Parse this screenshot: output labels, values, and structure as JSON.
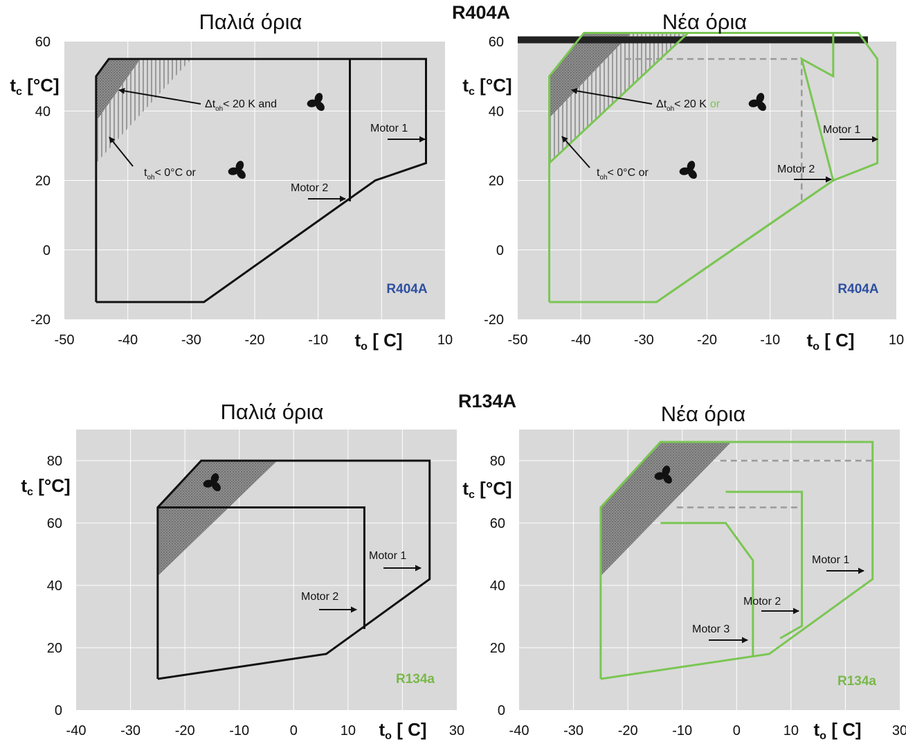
{
  "section_titles": {
    "top": "R404A",
    "bottom": "R134A"
  },
  "colors": {
    "old_envelope": "#111111",
    "new_envelope": "#7ac653",
    "plot_bg": "#d9d9d9",
    "grid": "#ffffff",
    "ref_r404a": "#2e4fa1",
    "ref_r134a": "#79b84a"
  },
  "chart_data": [
    {
      "type": "line",
      "title": "Παλιά όρια",
      "xlabel": "t_o [ C]",
      "ylabel": "t_c [°C]",
      "xlim": [
        -50,
        10
      ],
      "ylim": [
        -20,
        60
      ],
      "xticks": [
        -50,
        -40,
        -30,
        -20,
        -10,
        10
      ],
      "yticks": [
        -20,
        0,
        20,
        40,
        60
      ],
      "reference_label": "R404A",
      "envelope_color": "#111111",
      "series": [
        {
          "name": "Motor 1",
          "x": [
            -45,
            -45,
            -43,
            7,
            7,
            -1,
            -28,
            -45
          ],
          "y": [
            -15,
            50,
            55,
            55,
            25,
            20,
            -15,
            -15
          ]
        },
        {
          "name": "Motor 2",
          "x": [
            -5,
            -5
          ],
          "y": [
            55,
            14
          ]
        }
      ],
      "zones": [
        {
          "kind": "dotted",
          "x": [
            -45,
            -45,
            -43,
            -38,
            -45
          ],
          "y": [
            37,
            50,
            55,
            55,
            37
          ]
        },
        {
          "kind": "hatched",
          "x": [
            -45,
            -45,
            -38,
            -30
          ],
          "y": [
            25,
            37,
            55,
            55
          ]
        }
      ],
      "annotations": [
        {
          "text": "Δt_oh< 20 K and",
          "fan": true
        },
        {
          "text": "t_oh< 0°C or",
          "fan": true
        },
        {
          "text": "Motor 1"
        },
        {
          "text": "Motor 2"
        }
      ]
    },
    {
      "type": "line",
      "title": "Νέα όρια",
      "xlabel": "t_o [ C]",
      "ylabel": "t_c [°C]",
      "xlim": [
        -50,
        10
      ],
      "ylim": [
        -20,
        60
      ],
      "xticks": [
        -50,
        -40,
        -30,
        -20,
        -10,
        10
      ],
      "yticks": [
        -20,
        0,
        20,
        40,
        60
      ],
      "reference_label": "R404A",
      "envelope_color": "#7ac653",
      "series": [
        {
          "name": "Motor 1",
          "x": [
            -45,
            -45,
            -39.5,
            4,
            7,
            7,
            0,
            -28,
            -45
          ],
          "y": [
            -15,
            50,
            62.5,
            62.5,
            55,
            25,
            20,
            -15,
            -15
          ]
        },
        {
          "name": "Motor 2",
          "x": [
            -45,
            -23,
            0,
            0,
            -5,
            -5,
            0,
            -28,
            -45
          ],
          "y": [
            25,
            62.5,
            62.5,
            50,
            55,
            55,
            20,
            -15,
            -15
          ]
        }
      ],
      "old_limit_dashed": {
        "x": [
          -33,
          -5,
          -5
        ],
        "y": [
          55,
          55,
          14
        ]
      },
      "old_limit_bar": {
        "x": [
          -50,
          5.5
        ],
        "y": 60.5
      },
      "zones": [
        {
          "kind": "dotted",
          "x": [
            -45,
            -45,
            -39.5,
            -32,
            -45
          ],
          "y": [
            38,
            50,
            62.5,
            62.5,
            38
          ]
        },
        {
          "kind": "hatched",
          "x": [
            -45,
            -45,
            -32,
            -23
          ],
          "y": [
            25,
            38,
            62.5,
            62.5
          ]
        }
      ],
      "annotations": [
        {
          "text": "Δt_oh< 20 K",
          "suffix": "or",
          "fan": true
        },
        {
          "text": "t_oh< 0°C or",
          "fan": true
        },
        {
          "text": "Motor 1"
        },
        {
          "text": "Motor 2"
        }
      ]
    },
    {
      "type": "line",
      "title": "Παλιά όρια",
      "xlabel": "t_o [ C]",
      "ylabel": "t_c [°C]",
      "xlim": [
        -40,
        30
      ],
      "ylim": [
        0,
        90
      ],
      "xticks": [
        -40,
        -30,
        -20,
        -10,
        0,
        10,
        30
      ],
      "yticks": [
        0,
        20,
        40,
        60,
        80
      ],
      "reference_label": "R134a",
      "envelope_color": "#111111",
      "series": [
        {
          "name": "Motor 1",
          "x": [
            -25,
            -25,
            -17,
            25,
            25,
            6,
            -25
          ],
          "y": [
            10,
            65,
            80,
            80,
            42,
            18,
            10
          ]
        },
        {
          "name": "Motor 2",
          "x": [
            -25,
            13,
            13
          ],
          "y": [
            65,
            65,
            26
          ]
        }
      ],
      "zones": [
        {
          "kind": "dotted",
          "x": [
            -25,
            -25,
            -17,
            -3,
            -25
          ],
          "y": [
            43,
            65,
            80,
            80,
            43
          ]
        }
      ],
      "annotations": [
        {
          "text": "",
          "fan": true
        },
        {
          "text": "Motor 1"
        },
        {
          "text": "Motor 2"
        }
      ]
    },
    {
      "type": "line",
      "title": "Νέα όρια",
      "xlabel": "t_o [ C]",
      "ylabel": "t_c [°C]",
      "xlim": [
        -40,
        30
      ],
      "ylim": [
        0,
        90
      ],
      "xticks": [
        -40,
        -30,
        -20,
        -10,
        0,
        10,
        30
      ],
      "yticks": [
        0,
        20,
        40,
        60,
        80
      ],
      "reference_label": "R134a",
      "envelope_color": "#7ac653",
      "series": [
        {
          "name": "Motor 1",
          "x": [
            -25,
            -25,
            -14,
            25,
            25,
            6,
            -25
          ],
          "y": [
            10,
            65,
            86,
            86,
            42,
            18,
            10
          ]
        },
        {
          "name": "Motor 2",
          "x": [
            -2,
            12,
            12,
            8
          ],
          "y": [
            70,
            70,
            27,
            23
          ]
        },
        {
          "name": "Motor 3",
          "x": [
            -14,
            -2,
            3,
            3
          ],
          "y": [
            60,
            60,
            48,
            17
          ]
        }
      ],
      "old_limit_dashed": [
        {
          "x": [
            -3,
            25
          ],
          "y": [
            80,
            80
          ]
        },
        {
          "x": [
            -11,
            12
          ],
          "y": [
            65,
            65
          ]
        }
      ],
      "zones": [
        {
          "kind": "dotted",
          "x": [
            -25,
            -25,
            -14,
            -1,
            -25
          ],
          "y": [
            43,
            65,
            86,
            86,
            43
          ]
        }
      ],
      "annotations": [
        {
          "text": "",
          "fan": true
        },
        {
          "text": "Motor 1"
        },
        {
          "text": "Motor 2"
        },
        {
          "text": "Motor 3"
        }
      ]
    }
  ]
}
